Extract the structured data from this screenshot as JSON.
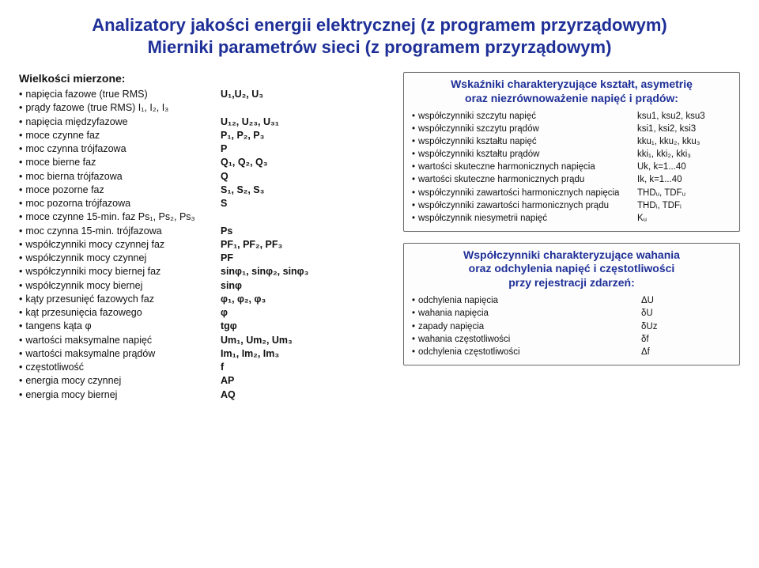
{
  "title_line1": "Analizatory jakości energii elektrycznej (z programem przyrządowym)",
  "title_line2": "Mierniki parametrów sieci (z programem przyrządowym)",
  "left_header": "Wielkości mierzone:",
  "measures": [
    {
      "label": "napięcia fazowe (true RMS)",
      "val": "U₁,U₂, U₃"
    },
    {
      "label": "prądy fazowe (true RMS)  I₁, I₂, I₃",
      "val": ""
    },
    {
      "label": "napięcia międzyfazowe",
      "val": "U₁₂, U₂₃, U₃₁"
    },
    {
      "label": "moce czynne faz",
      "val": "P₁, P₂, P₃"
    },
    {
      "label": "moc czynna trójfazowa",
      "val": "P"
    },
    {
      "label": "moce bierne faz",
      "val": "Q₁, Q₂, Q₃"
    },
    {
      "label": "moc bierna trójfazowa",
      "val": "Q"
    },
    {
      "label": "moce pozorne faz",
      "val": "S₁, S₂, S₃"
    },
    {
      "label": "moc pozorna trójfazowa",
      "val": "S"
    },
    {
      "label": "moce czynne 15-min. faz  Ps₁, Ps₂, Ps₃",
      "val": ""
    },
    {
      "label": "moc czynna 15-min. trójfazowa",
      "val": "Ps"
    },
    {
      "label": "współczynniki mocy czynnej faz",
      "val": "PF₁, PF₂, PF₃"
    },
    {
      "label": "współczynnik mocy czynnej",
      "val": "PF"
    },
    {
      "label": "współczynniki mocy biernej faz",
      "val": "sinφ₁, sinφ₂, sinφ₃"
    },
    {
      "label": "współczynnik mocy biernej",
      "val": "sinφ"
    },
    {
      "label": "kąty przesunięć fazowych faz",
      "val": "φ₁, φ₂, φ₃"
    },
    {
      "label": "kąt przesunięcia fazowego",
      "val": "φ"
    },
    {
      "label": "tangens kąta φ",
      "val": "tgφ"
    },
    {
      "label": "wartości maksymalne napięć",
      "val": "Um₁, Um₂, Um₃"
    },
    {
      "label": "wartości maksymalne prądów",
      "val": "Im₁, Im₂, Im₃"
    },
    {
      "label": "częstotliwość",
      "val": "f"
    },
    {
      "label": "energia mocy czynnej",
      "val": "AP"
    },
    {
      "label": "energia mocy biernej",
      "val": "AQ"
    }
  ],
  "box1": {
    "title_l1": "Wskaźniki charakteryzujące kształt, asymetrię",
    "title_l2": "oraz niezrównoważenie napięć i prądów:",
    "rows": [
      {
        "l": "współczynniki szczytu napięć",
        "v": "ksu1, ksu2, ksu3"
      },
      {
        "l": "współczynniki szczytu prądów",
        "v": "ksi1, ksi2, ksi3"
      },
      {
        "l": "współczynniki kształtu napięć",
        "v": "kku₁, kku₂, kku₃"
      },
      {
        "l": "współczynniki kształtu prądów",
        "v": "kki₁, kki₂, kki₃"
      },
      {
        "l": "wartości skuteczne harmonicznych napięcia",
        "v": "Uk, k=1...40"
      },
      {
        "l": "wartości skuteczne harmonicznych prądu",
        "v": "Ik, k=1...40"
      },
      {
        "l": "współczynniki zawartości harmonicznych napięcia",
        "v": "THDᵤ, TDFᵤ"
      },
      {
        "l": "współczynniki zawartości harmonicznych prądu",
        "v": "THDᵢ, TDFᵢ"
      },
      {
        "l": "współczynnik niesymetrii napięć",
        "v": "Kᵤ"
      }
    ]
  },
  "box2": {
    "title_l1": "Współczynniki charakteryzujące wahania",
    "title_l2": "oraz odchylenia napięć i częstotliwości",
    "title_l3": "przy rejestracji zdarzeń:",
    "rows": [
      {
        "l": "odchylenia napięcia",
        "v": "ΔU"
      },
      {
        "l": "wahania napięcia",
        "v": "δU"
      },
      {
        "l": "zapady napięcia",
        "v": "δUz"
      },
      {
        "l": "wahania częstotliwości",
        "v": "δf"
      },
      {
        "l": "odchylenia częstotliwości",
        "v": "Δf"
      }
    ]
  }
}
